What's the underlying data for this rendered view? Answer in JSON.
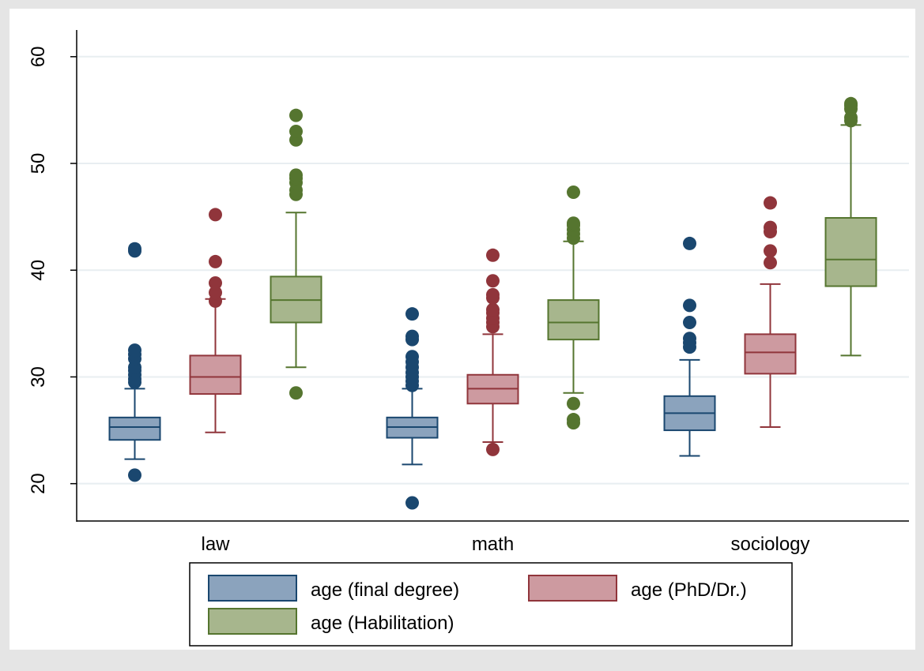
{
  "chart_data": {
    "type": "box",
    "categories": [
      "law",
      "math",
      "sociology"
    ],
    "ylim": [
      16.5,
      62.5
    ],
    "yticks": [
      20,
      30,
      40,
      50,
      60
    ],
    "grid": true,
    "legend_position": "bottom",
    "colors": {
      "background": "#e5e5e5",
      "plot_bg": "#ffffff",
      "gridline": "#e8eef1"
    },
    "series": [
      {
        "name": "age (final degree)",
        "fill": "#8ba3bd",
        "stroke": "#1a476f",
        "boxes": [
          {
            "category": "law",
            "whisker_low": 22.3,
            "q1": 24.1,
            "median": 25.3,
            "q3": 26.2,
            "whisker_high": 28.9,
            "outliers": [
              20.8,
              29.5,
              29.8,
              30.2,
              30.6,
              30.9,
              31.7,
              32.1,
              32.5,
              41.8,
              42.0
            ]
          },
          {
            "category": "math",
            "whisker_low": 21.8,
            "q1": 24.3,
            "median": 25.3,
            "q3": 26.2,
            "whisker_high": 28.9,
            "outliers": [
              18.2,
              29.2,
              29.6,
              30.0,
              30.4,
              30.9,
              31.4,
              31.9,
              33.5,
              33.8,
              35.9
            ]
          },
          {
            "category": "sociology",
            "whisker_low": 22.6,
            "q1": 25.0,
            "median": 26.6,
            "q3": 28.2,
            "whisker_high": 31.6,
            "outliers": [
              32.8,
              33.2,
              33.6,
              35.1,
              36.7,
              42.5
            ]
          }
        ]
      },
      {
        "name": "age (PhD/Dr.)",
        "fill": "#cd9aa0",
        "stroke": "#90353b",
        "boxes": [
          {
            "category": "law",
            "whisker_low": 24.8,
            "q1": 28.4,
            "median": 30.0,
            "q3": 32.0,
            "whisker_high": 37.3,
            "outliers": [
              37.1,
              37.9,
              38.8,
              40.8,
              45.2
            ]
          },
          {
            "category": "math",
            "whisker_low": 23.9,
            "q1": 27.5,
            "median": 28.9,
            "q3": 30.2,
            "whisker_high": 34.0,
            "outliers": [
              23.2,
              34.7,
              35.1,
              35.5,
              36.0,
              36.3,
              37.4,
              37.7,
              39.0,
              41.4
            ]
          },
          {
            "category": "sociology",
            "whisker_low": 25.3,
            "q1": 30.3,
            "median": 32.3,
            "q3": 34.0,
            "whisker_high": 38.7,
            "outliers": [
              40.7,
              41.8,
              43.6,
              44.0,
              46.3
            ]
          }
        ]
      },
      {
        "name": "age (Habilitation)",
        "fill": "#a7b68d",
        "stroke": "#55752f",
        "boxes": [
          {
            "category": "law",
            "whisker_low": 30.9,
            "q1": 35.1,
            "median": 37.2,
            "q3": 39.4,
            "whisker_high": 45.4,
            "outliers": [
              28.5,
              47.1,
              47.5,
              48.2,
              48.6,
              48.9,
              52.2,
              53.0,
              54.5
            ]
          },
          {
            "category": "math",
            "whisker_low": 28.5,
            "q1": 33.5,
            "median": 35.1,
            "q3": 37.2,
            "whisker_high": 42.7,
            "outliers": [
              25.7,
              26.0,
              27.5,
              43.0,
              43.4,
              43.8,
              44.2,
              44.4,
              47.3
            ]
          },
          {
            "category": "sociology",
            "whisker_low": 32.0,
            "q1": 38.5,
            "median": 41.0,
            "q3": 44.9,
            "whisker_high": 53.6,
            "outliers": [
              54.0,
              54.3,
              55.1,
              55.4,
              55.6
            ]
          }
        ]
      }
    ]
  }
}
